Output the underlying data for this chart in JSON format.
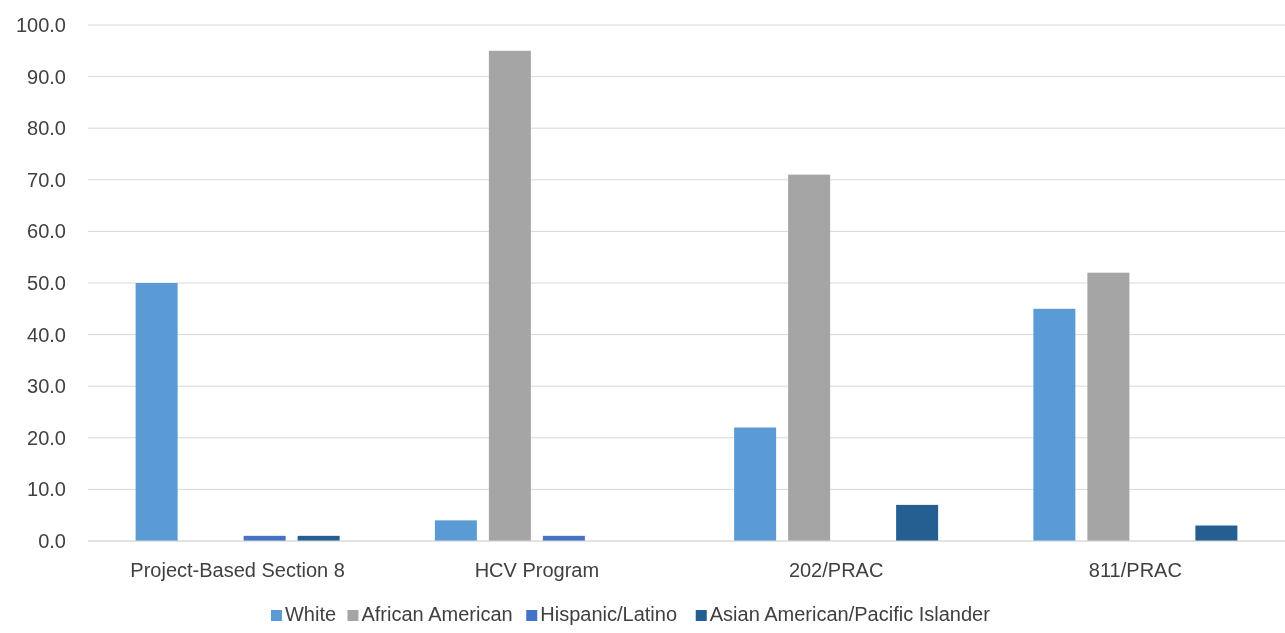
{
  "chart_data": {
    "type": "bar",
    "categories": [
      "Project-Based Section 8",
      "HCV Program",
      "202/PRAC",
      "811/PRAC"
    ],
    "series": [
      {
        "name": "White",
        "color": "#5b9bd5",
        "values": [
          50,
          4,
          22,
          45
        ]
      },
      {
        "name": "African American",
        "color": "#a5a5a5",
        "values": [
          0,
          95,
          71,
          52
        ]
      },
      {
        "name": "Hispanic/Latino",
        "color": "#4472c4",
        "values": [
          1,
          1,
          0,
          0
        ]
      },
      {
        "name": "Asian American/Pacific Islander",
        "color": "#255e91",
        "values": [
          1,
          0,
          7,
          3
        ]
      }
    ],
    "ylim": [
      0,
      100
    ],
    "yticks": [
      {
        "value": 0,
        "label": "0.0"
      },
      {
        "value": 10,
        "label": "10.0"
      },
      {
        "value": 20,
        "label": "20.0"
      },
      {
        "value": 30,
        "label": "30.0"
      },
      {
        "value": 40,
        "label": "40.0"
      },
      {
        "value": 50,
        "label": "50.0"
      },
      {
        "value": 60,
        "label": "60.0"
      },
      {
        "value": 70,
        "label": "70.0"
      },
      {
        "value": 80,
        "label": "80.0"
      },
      {
        "value": 90,
        "label": "90.0"
      },
      {
        "value": 100,
        "label": "100.0"
      }
    ],
    "grid": "y",
    "legend": "bottom"
  }
}
